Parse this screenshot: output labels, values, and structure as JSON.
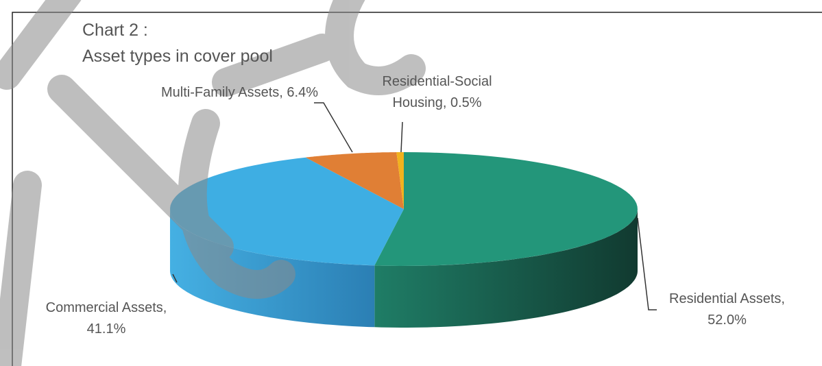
{
  "chart_data": {
    "type": "pie3d",
    "title": "Chart 2 :",
    "subtitle": "Asset types in cover pool",
    "categories": [
      "Residential Assets",
      "Commercial Assets",
      "Multi-Family Assets",
      "Residential-Social Housing"
    ],
    "values": [
      52.0,
      41.1,
      6.4,
      0.5
    ],
    "value_labels": [
      "52.0%",
      "41.1%",
      "6.4%",
      "0.5%"
    ],
    "colors": [
      "#23967a",
      "#3eaee3",
      "#e07f35",
      "#f2b21e"
    ],
    "side_colors": [
      [
        "#1f7d66",
        "#113a30"
      ],
      [
        "#45b0e3",
        "#2b7fb4"
      ],
      [
        "#b8642a",
        "#8a4a1f"
      ],
      [
        "#c99015",
        "#9a6d10"
      ]
    ]
  }
}
